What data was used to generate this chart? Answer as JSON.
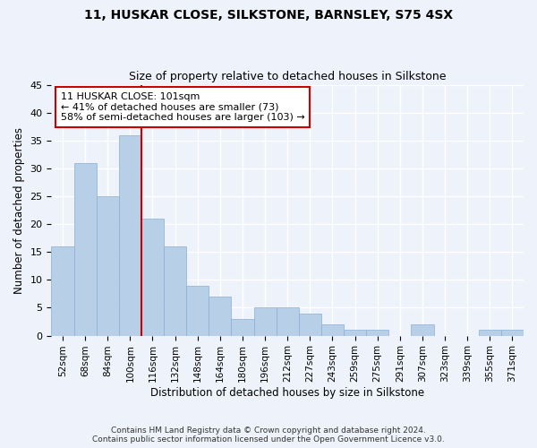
{
  "title1": "11, HUSKAR CLOSE, SILKSTONE, BARNSLEY, S75 4SX",
  "title2": "Size of property relative to detached houses in Silkstone",
  "xlabel": "Distribution of detached houses by size in Silkstone",
  "ylabel": "Number of detached properties",
  "categories": [
    "52sqm",
    "68sqm",
    "84sqm",
    "100sqm",
    "116sqm",
    "132sqm",
    "148sqm",
    "164sqm",
    "180sqm",
    "196sqm",
    "212sqm",
    "227sqm",
    "243sqm",
    "259sqm",
    "275sqm",
    "291sqm",
    "307sqm",
    "323sqm",
    "339sqm",
    "355sqm",
    "371sqm"
  ],
  "values": [
    16,
    31,
    25,
    36,
    21,
    16,
    9,
    7,
    3,
    5,
    5,
    4,
    2,
    1,
    1,
    0,
    2,
    0,
    0,
    1,
    1
  ],
  "bar_color": "#b8cfe8",
  "bar_edge_color": "#8aafd4",
  "red_line_index": 3,
  "annotation_line1": "11 HUSKAR CLOSE: 101sqm",
  "annotation_line2": "← 41% of detached houses are smaller (73)",
  "annotation_line3": "58% of semi-detached houses are larger (103) →",
  "annotation_box_color": "#ffffff",
  "annotation_box_edge": "#cc0000",
  "red_line_color": "#cc0000",
  "ylim": [
    0,
    45
  ],
  "yticks": [
    0,
    5,
    10,
    15,
    20,
    25,
    30,
    35,
    40,
    45
  ],
  "footer1": "Contains HM Land Registry data © Crown copyright and database right 2024.",
  "footer2": "Contains public sector information licensed under the Open Government Licence v3.0.",
  "background_color": "#eef2fa",
  "grid_color": "#ffffff"
}
